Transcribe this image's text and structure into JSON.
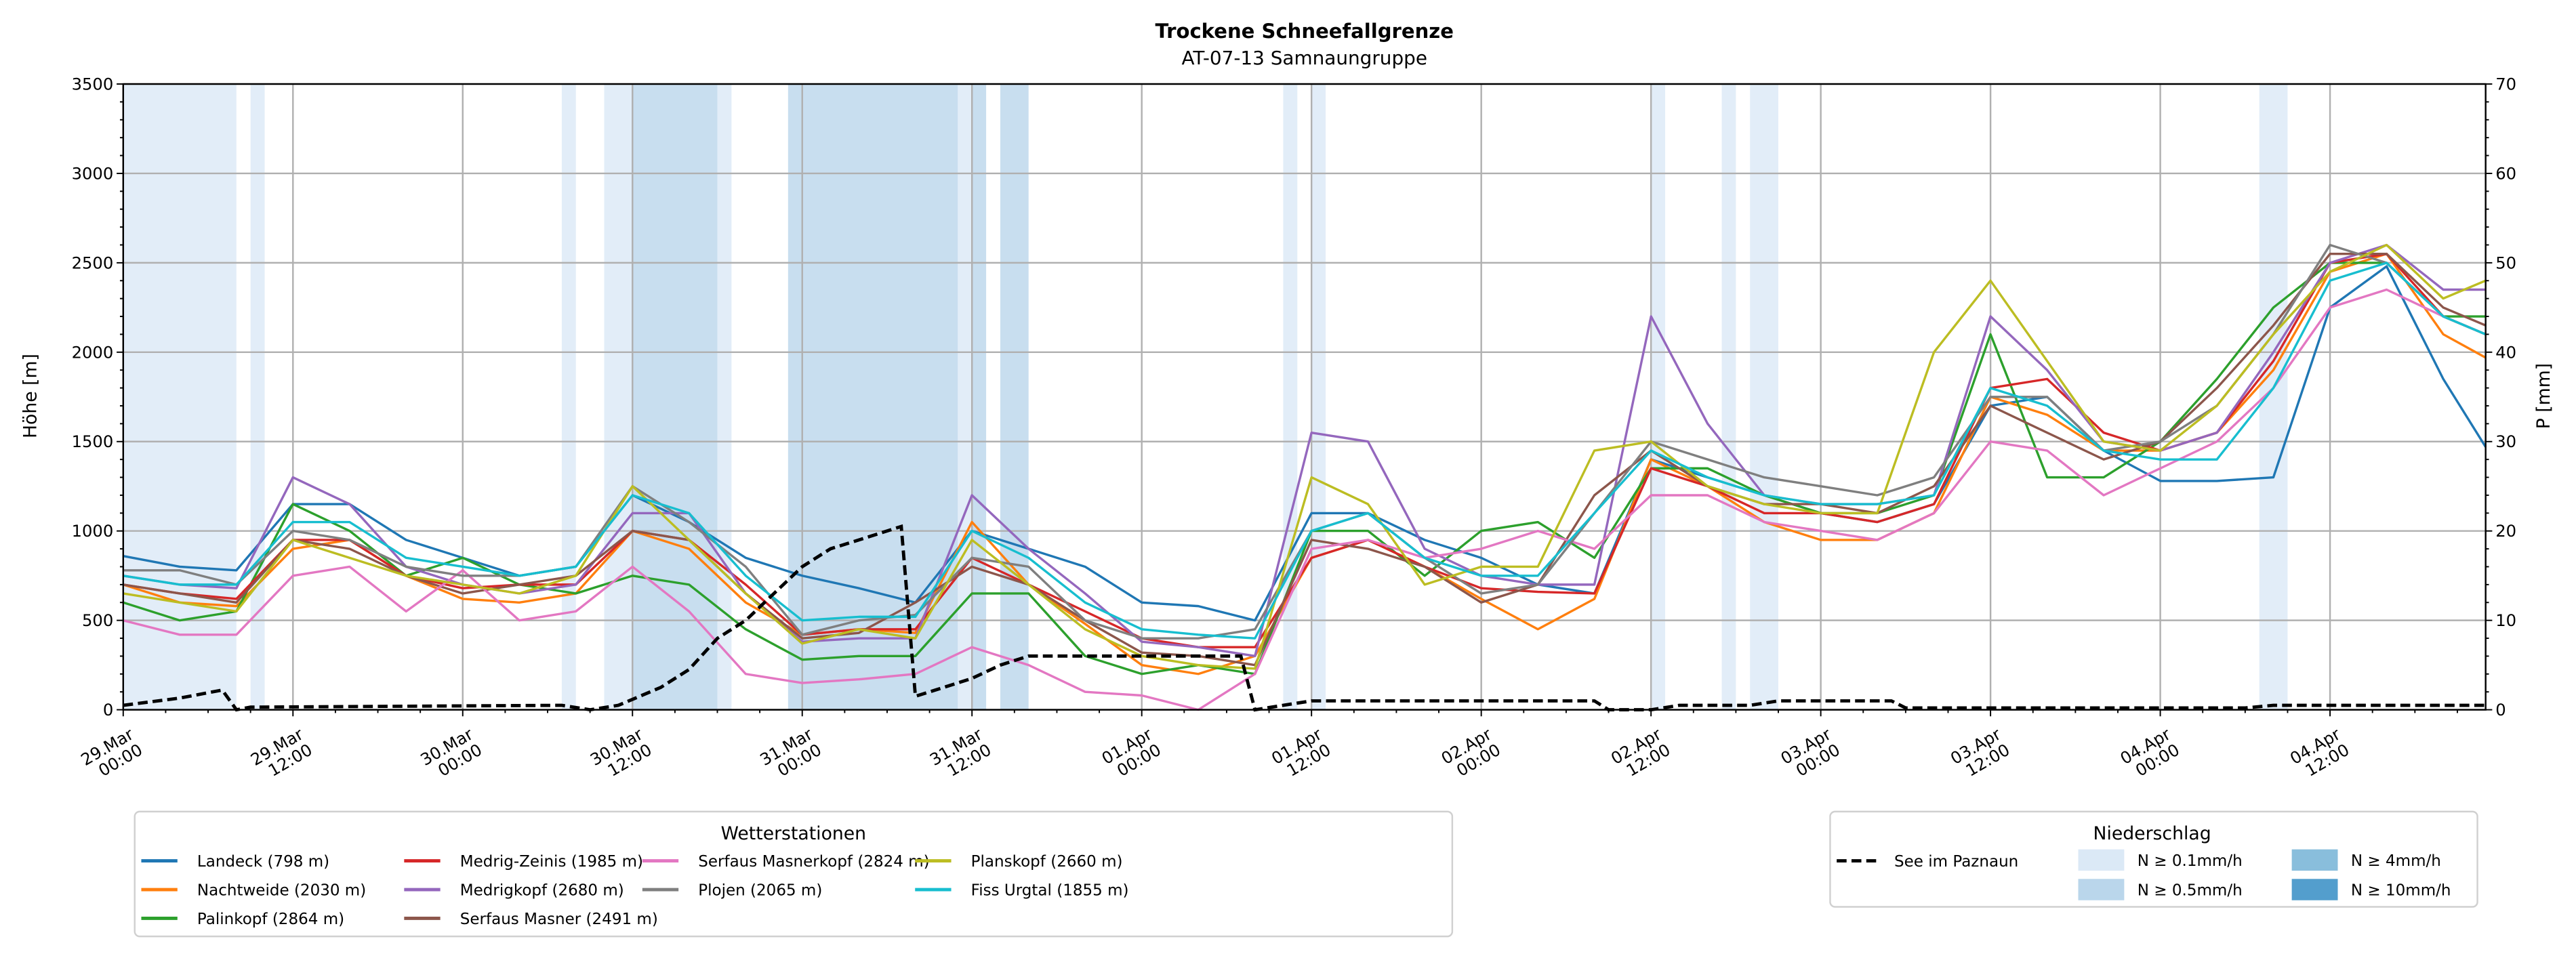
{
  "chart_data": {
    "type": "line",
    "title": "Trockene Schneefallgrenze",
    "subtitle": "AT-07-13 Samnaungruppe",
    "ylabel": "Höhe [m]",
    "ylabel_right": "P [mm]",
    "ylim": [
      0,
      3500
    ],
    "ylim_right": [
      0,
      70
    ],
    "xlim_hours": [
      0,
      167
    ],
    "grid": true,
    "y_ticks": [
      "0",
      "500",
      "1000",
      "1500",
      "2000",
      "2500",
      "3000",
      "3500"
    ],
    "y_ticks_right": [
      "0",
      "10",
      "20",
      "30",
      "40",
      "50",
      "60",
      "70"
    ],
    "x_ticks": [
      {
        "date": "29.Mar",
        "time": "00:00"
      },
      {
        "date": "29.Mar",
        "time": "12:00"
      },
      {
        "date": "30.Mar",
        "time": "00:00"
      },
      {
        "date": "30.Mar",
        "time": "12:00"
      },
      {
        "date": "31.Mar",
        "time": "00:00"
      },
      {
        "date": "31.Mar",
        "time": "12:00"
      },
      {
        "date": "01.Apr",
        "time": "00:00"
      },
      {
        "date": "01.Apr",
        "time": "12:00"
      },
      {
        "date": "02.Apr",
        "time": "00:00"
      },
      {
        "date": "02.Apr",
        "time": "12:00"
      },
      {
        "date": "03.Apr",
        "time": "00:00"
      },
      {
        "date": "03.Apr",
        "time": "12:00"
      },
      {
        "date": "04.Apr",
        "time": "00:00"
      },
      {
        "date": "04.Apr",
        "time": "12:00"
      }
    ],
    "x_hours": [
      0,
      4,
      8,
      12,
      16,
      20,
      24,
      28,
      32,
      36,
      40,
      44,
      48,
      52,
      56,
      60,
      64,
      68,
      72,
      76,
      80,
      84,
      88,
      92,
      96,
      100,
      104,
      108,
      112,
      116,
      120,
      124,
      128,
      132,
      136,
      140,
      144,
      148,
      152,
      156,
      160,
      164,
      167
    ],
    "legend_title": "Wetterstationen",
    "series": [
      {
        "name": "Landeck (798 m)",
        "color": "#1f77b4",
        "values": [
          860,
          800,
          780,
          1150,
          1150,
          950,
          850,
          750,
          800,
          1200,
          1050,
          850,
          750,
          680,
          600,
          1000,
          900,
          800,
          600,
          580,
          500,
          1100,
          1100,
          950,
          850,
          700,
          650,
          1400,
          1300,
          1200,
          1100,
          1050,
          1150,
          1700,
          1750,
          1450,
          1280,
          1280,
          1300,
          2250,
          2480,
          1850,
          1470
        ]
      },
      {
        "name": "Nachtweide (2030 m)",
        "color": "#ff7f0e",
        "values": [
          700,
          600,
          580,
          900,
          950,
          750,
          620,
          600,
          650,
          1000,
          900,
          600,
          420,
          450,
          430,
          1050,
          700,
          480,
          250,
          200,
          300,
          850,
          950,
          800,
          620,
          450,
          620,
          1400,
          1250,
          1050,
          950,
          950,
          1100,
          1750,
          1650,
          1450,
          1450,
          1550,
          1900,
          2450,
          2550,
          2100,
          1970
        ]
      },
      {
        "name": "Palinkopf (2864 m)",
        "color": "#2ca02c",
        "values": [
          600,
          500,
          550,
          1150,
          1000,
          750,
          850,
          700,
          650,
          750,
          700,
          450,
          280,
          300,
          300,
          650,
          650,
          300,
          200,
          250,
          200,
          1000,
          1000,
          750,
          1000,
          1050,
          850,
          1350,
          1350,
          1200,
          1100,
          1100,
          1200,
          2100,
          1300,
          1300,
          1500,
          1850,
          2250,
          2500,
          2500,
          2200,
          2200
        ]
      },
      {
        "name": "Medrig-Zeinis (1985 m)",
        "color": "#d62728",
        "values": [
          700,
          650,
          620,
          950,
          950,
          750,
          680,
          700,
          700,
          1000,
          950,
          700,
          420,
          450,
          450,
          850,
          700,
          550,
          400,
          350,
          350,
          850,
          950,
          800,
          680,
          660,
          650,
          1350,
          1250,
          1100,
          1100,
          1050,
          1150,
          1800,
          1850,
          1550,
          1450,
          1550,
          1950,
          2500,
          2550,
          2200,
          2100
        ]
      },
      {
        "name": "Medrigkopf (2680 m)",
        "color": "#9467bd",
        "values": [
          750,
          700,
          680,
          1300,
          1150,
          800,
          700,
          650,
          700,
          1100,
          1100,
          650,
          380,
          400,
          400,
          1200,
          900,
          650,
          380,
          350,
          300,
          1550,
          1500,
          900,
          750,
          700,
          700,
          2200,
          1600,
          1200,
          1150,
          1150,
          1200,
          2200,
          1900,
          1500,
          1450,
          1550,
          2000,
          2500,
          2600,
          2350,
          2350
        ]
      },
      {
        "name": "Serfaus Masner (2491 m)",
        "color": "#8c564b",
        "values": [
          700,
          650,
          600,
          950,
          900,
          750,
          650,
          700,
          750,
          1000,
          950,
          650,
          400,
          430,
          600,
          800,
          700,
          500,
          320,
          300,
          250,
          950,
          900,
          800,
          600,
          700,
          1200,
          1450,
          1250,
          1150,
          1150,
          1100,
          1250,
          1700,
          1550,
          1400,
          1500,
          1800,
          2150,
          2550,
          2550,
          2250,
          2150
        ]
      },
      {
        "name": "Serfaus Masnerkopf (2824 m)",
        "color": "#e377c2",
        "values": [
          500,
          420,
          420,
          750,
          800,
          550,
          780,
          500,
          550,
          800,
          550,
          200,
          150,
          170,
          200,
          350,
          250,
          100,
          80,
          0,
          200,
          900,
          950,
          850,
          900,
          1000,
          900,
          1200,
          1200,
          1050,
          1000,
          950,
          1100,
          1500,
          1450,
          1200,
          1350,
          1500,
          1800,
          2250,
          2350,
          2200,
          2100
        ]
      },
      {
        "name": "Plojen (2065 m)",
        "color": "#7f7f7f",
        "values": [
          780,
          780,
          700,
          1000,
          950,
          800,
          750,
          750,
          800,
          1250,
          1050,
          800,
          420,
          500,
          530,
          850,
          800,
          500,
          400,
          400,
          450,
          1000,
          1100,
          850,
          650,
          700,
          1100,
          1500,
          1400,
          1300,
          1250,
          1200,
          1300,
          1750,
          1750,
          1450,
          1500,
          1700,
          2100,
          2600,
          2500,
          2200,
          2100
        ]
      },
      {
        "name": "Planskopf (2660 m)",
        "color": "#bcbd22",
        "values": [
          650,
          600,
          550,
          950,
          850,
          750,
          700,
          650,
          750,
          1250,
          950,
          650,
          370,
          450,
          400,
          950,
          700,
          450,
          300,
          250,
          230,
          1300,
          1150,
          700,
          800,
          800,
          1450,
          1500,
          1250,
          1150,
          1100,
          1100,
          2000,
          2400,
          1950,
          1500,
          1450,
          1700,
          2100,
          2450,
          2600,
          2300,
          2400
        ]
      },
      {
        "name": "Fiss Urgtal  (1855 m)",
        "color": "#17becf",
        "values": [
          750,
          700,
          700,
          1050,
          1050,
          850,
          800,
          750,
          800,
          1200,
          1100,
          750,
          500,
          520,
          520,
          1000,
          850,
          600,
          450,
          420,
          400,
          1000,
          1100,
          850,
          750,
          750,
          1100,
          1450,
          1300,
          1200,
          1150,
          1150,
          1200,
          1800,
          1700,
          1450,
          1400,
          1400,
          1800,
          2400,
          2500,
          2200,
          2100
        ]
      }
    ],
    "lake": {
      "name": "See im Paznaun",
      "color": "#000000",
      "points_hours_mm": [
        [
          0,
          0.5
        ],
        [
          4,
          1.3
        ],
        [
          7,
          2.2
        ],
        [
          8,
          0
        ],
        [
          9,
          0.3
        ],
        [
          31,
          0.5
        ],
        [
          33,
          0
        ],
        [
          35,
          0.5
        ],
        [
          38,
          2.5
        ],
        [
          40,
          4.5
        ],
        [
          42,
          8
        ],
        [
          44,
          10
        ],
        [
          46,
          13
        ],
        [
          48,
          16
        ],
        [
          50,
          18
        ],
        [
          52,
          19
        ],
        [
          55,
          20.5
        ],
        [
          56,
          1.5
        ],
        [
          58,
          2.5
        ],
        [
          60,
          3.5
        ],
        [
          62,
          5
        ],
        [
          64,
          6
        ],
        [
          79,
          6
        ],
        [
          80,
          0
        ],
        [
          82,
          0.5
        ],
        [
          84,
          1
        ],
        [
          104,
          1
        ],
        [
          105,
          0
        ],
        [
          108,
          0
        ],
        [
          110,
          0.5
        ],
        [
          115,
          0.5
        ],
        [
          117,
          1
        ],
        [
          125,
          1
        ],
        [
          126,
          0.2
        ],
        [
          150,
          0.2
        ],
        [
          152,
          0.5
        ],
        [
          167,
          0.5
        ]
      ]
    },
    "precip_legend_title": "Niederschlag",
    "precip_levels": [
      {
        "label": "N ≥ 0.1mm/h",
        "color": "#dbe9f6"
      },
      {
        "label": "N ≥ 0.5mm/h",
        "color": "#bad6eb"
      },
      {
        "label": "N ≥ 4mm/h",
        "color": "#89bedc"
      },
      {
        "label": "N ≥ 10mm/h",
        "color": "#539ecd"
      }
    ],
    "precip_bands_hours": [
      [
        0,
        8,
        0
      ],
      [
        9,
        10,
        0
      ],
      [
        31,
        32,
        0
      ],
      [
        34,
        36,
        0
      ],
      [
        36,
        42,
        1
      ],
      [
        42,
        43,
        0
      ],
      [
        47,
        59,
        1
      ],
      [
        59,
        60,
        0
      ],
      [
        60,
        61,
        1
      ],
      [
        62,
        64,
        1
      ],
      [
        82,
        83,
        0
      ],
      [
        84,
        85,
        0
      ],
      [
        108,
        109,
        0
      ],
      [
        113,
        114,
        0
      ],
      [
        115,
        117,
        0
      ],
      [
        151,
        153,
        0
      ]
    ]
  }
}
